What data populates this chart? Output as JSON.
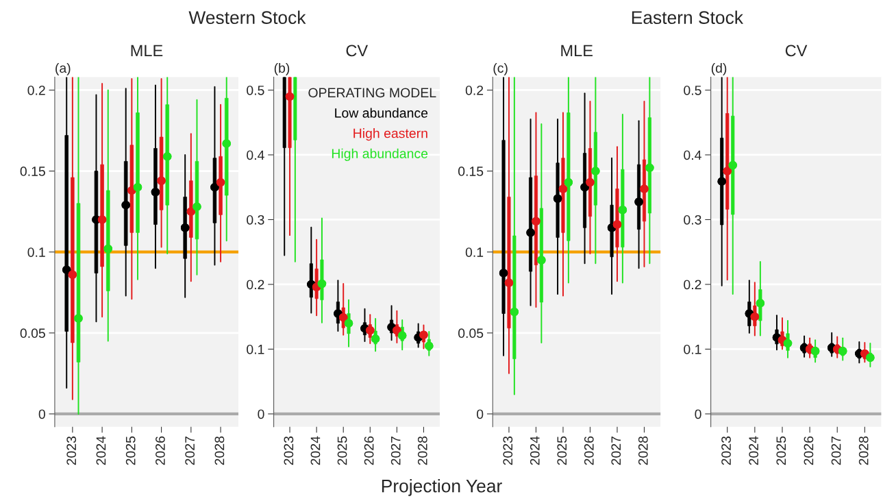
{
  "chart_data": [
    {
      "type": "box",
      "title": "MLE",
      "subtitle": "Western Stock",
      "annotations": [
        "(a)"
      ],
      "categories": [
        "2023",
        "2024",
        "2025",
        "2026",
        "2027",
        "2028"
      ],
      "ylim": [
        -0.008,
        0.208
      ],
      "yticks": [
        0,
        0.05,
        0.1,
        0.15,
        0.2
      ],
      "grid": "y",
      "ref_lines": [
        {
          "axis": "y",
          "value": 0,
          "color": "#aaaaaa"
        },
        {
          "axis": "y",
          "value": 0.1,
          "color": "#f5a000"
        }
      ],
      "series": [
        {
          "color": "#000000",
          "boxes": [
            {
              "low": 0.016,
              "q1": 0.051,
              "median": 0.089,
              "q3": 0.172,
              "high": 0.208
            },
            {
              "low": 0.057,
              "q1": 0.087,
              "median": 0.12,
              "q3": 0.15,
              "high": 0.197
            },
            {
              "low": 0.073,
              "q1": 0.104,
              "median": 0.129,
              "q3": 0.156,
              "high": 0.201
            },
            {
              "low": 0.09,
              "q1": 0.117,
              "median": 0.137,
              "q3": 0.164,
              "high": 0.203
            },
            {
              "low": 0.072,
              "q1": 0.096,
              "median": 0.115,
              "q3": 0.134,
              "high": 0.16
            },
            {
              "low": 0.092,
              "q1": 0.118,
              "median": 0.14,
              "q3": 0.158,
              "high": 0.202
            }
          ]
        },
        {
          "color": "#e31a1c",
          "boxes": [
            {
              "low": 0.009,
              "q1": 0.044,
              "median": 0.086,
              "q3": 0.146,
              "high": 0.208
            },
            {
              "low": 0.06,
              "q1": 0.091,
              "median": 0.12,
              "q3": 0.154,
              "high": 0.204
            },
            {
              "low": 0.071,
              "q1": 0.112,
              "median": 0.138,
              "q3": 0.166,
              "high": 0.207
            },
            {
              "low": 0.103,
              "q1": 0.126,
              "median": 0.144,
              "q3": 0.171,
              "high": 0.207
            },
            {
              "low": 0.082,
              "q1": 0.109,
              "median": 0.125,
              "q3": 0.144,
              "high": 0.173
            },
            {
              "low": 0.094,
              "q1": 0.123,
              "median": 0.143,
              "q3": 0.159,
              "high": 0.191
            }
          ]
        },
        {
          "color": "#22e222",
          "boxes": [
            {
              "low": 0.0,
              "q1": 0.032,
              "median": 0.059,
              "q3": 0.13,
              "high": 0.208
            },
            {
              "low": 0.045,
              "q1": 0.076,
              "median": 0.102,
              "q3": 0.138,
              "high": 0.2
            },
            {
              "low": 0.083,
              "q1": 0.112,
              "median": 0.14,
              "q3": 0.186,
              "high": 0.208
            },
            {
              "low": 0.099,
              "q1": 0.129,
              "median": 0.159,
              "q3": 0.191,
              "high": 0.208
            },
            {
              "low": 0.086,
              "q1": 0.108,
              "median": 0.128,
              "q3": 0.156,
              "high": 0.194
            },
            {
              "low": 0.107,
              "q1": 0.135,
              "median": 0.167,
              "q3": 0.195,
              "high": 0.208
            }
          ]
        }
      ]
    },
    {
      "type": "box",
      "title": "CV",
      "xlabel": "Projection Year",
      "annotations": [
        "(b)"
      ],
      "categories": [
        "2023",
        "2024",
        "2025",
        "2026",
        "2027",
        "2028"
      ],
      "ylim": [
        -0.02,
        0.52
      ],
      "yticks": [
        0,
        0.1,
        0.2,
        0.3,
        0.4,
        0.5
      ],
      "grid": "y",
      "legend_title": "OPERATING MODEL",
      "ref_lines": [
        {
          "axis": "y",
          "value": 0,
          "color": "#aaaaaa"
        }
      ],
      "series": [
        {
          "name": "Low abundance",
          "color": "#000000",
          "boxes": [
            {
              "low": 0.245,
              "q1": 0.411,
              "median": null,
              "q3": 0.52,
              "high": 0.52
            },
            {
              "low": 0.156,
              "q1": 0.18,
              "median": 0.2,
              "q3": 0.232,
              "high": 0.288
            },
            {
              "low": 0.128,
              "q1": 0.14,
              "median": 0.155,
              "q3": 0.173,
              "high": 0.206
            },
            {
              "low": 0.112,
              "q1": 0.122,
              "median": 0.132,
              "q3": 0.141,
              "high": 0.162
            },
            {
              "low": 0.114,
              "q1": 0.125,
              "median": 0.134,
              "q3": 0.145,
              "high": 0.167
            },
            {
              "low": 0.103,
              "q1": 0.109,
              "median": 0.118,
              "q3": 0.127,
              "high": 0.139
            }
          ]
        },
        {
          "name": "High eastern",
          "color": "#e31a1c",
          "boxes": [
            {
              "low": 0.276,
              "q1": 0.411,
              "median": 0.49,
              "q3": 0.52,
              "high": 0.52
            },
            {
              "low": 0.152,
              "q1": 0.178,
              "median": 0.196,
              "q3": 0.224,
              "high": 0.269
            },
            {
              "low": 0.122,
              "q1": 0.133,
              "median": 0.149,
              "q3": 0.164,
              "high": 0.201
            },
            {
              "low": 0.109,
              "q1": 0.118,
              "median": 0.129,
              "q3": 0.138,
              "high": 0.153
            },
            {
              "low": 0.11,
              "q1": 0.12,
              "median": 0.129,
              "q3": 0.138,
              "high": 0.159
            },
            {
              "low": 0.101,
              "q1": 0.111,
              "median": 0.122,
              "q3": 0.125,
              "high": 0.137
            }
          ]
        },
        {
          "name": "High abundance",
          "color": "#22e222",
          "boxes": [
            {
              "low": 0.235,
              "q1": 0.423,
              "median": null,
              "q3": 0.52,
              "high": 0.52
            },
            {
              "low": 0.141,
              "q1": 0.176,
              "median": 0.201,
              "q3": 0.238,
              "high": 0.302
            },
            {
              "low": 0.104,
              "q1": 0.124,
              "median": 0.14,
              "q3": 0.155,
              "high": 0.176
            },
            {
              "low": 0.097,
              "q1": 0.108,
              "median": 0.116,
              "q3": 0.128,
              "high": 0.147
            },
            {
              "low": 0.099,
              "q1": 0.113,
              "median": 0.121,
              "q3": 0.134,
              "high": 0.145
            },
            {
              "low": 0.09,
              "q1": 0.098,
              "median": 0.105,
              "q3": 0.115,
              "high": 0.127
            }
          ]
        }
      ]
    },
    {
      "type": "box",
      "title": "MLE",
      "subtitle": "Eastern Stock",
      "annotations": [
        "(c)"
      ],
      "categories": [
        "2023",
        "2024",
        "2025",
        "2026",
        "2027",
        "2028"
      ],
      "ylim": [
        -0.008,
        0.208
      ],
      "yticks": [
        0,
        0.05,
        0.1,
        0.15,
        0.2
      ],
      "grid": "y",
      "ref_lines": [
        {
          "axis": "y",
          "value": 0,
          "color": "#aaaaaa"
        },
        {
          "axis": "y",
          "value": 0.1,
          "color": "#f5a000"
        }
      ],
      "series": [
        {
          "color": "#000000",
          "boxes": [
            {
              "low": 0.036,
              "q1": 0.062,
              "median": 0.087,
              "q3": 0.169,
              "high": 0.208
            },
            {
              "low": 0.067,
              "q1": 0.088,
              "median": 0.112,
              "q3": 0.146,
              "high": 0.182
            },
            {
              "low": 0.074,
              "q1": 0.109,
              "median": 0.133,
              "q3": 0.155,
              "high": 0.182
            },
            {
              "low": 0.093,
              "q1": 0.115,
              "median": 0.14,
              "q3": 0.161,
              "high": 0.198
            },
            {
              "low": 0.074,
              "q1": 0.097,
              "median": 0.115,
              "q3": 0.129,
              "high": 0.158
            },
            {
              "low": 0.09,
              "q1": 0.114,
              "median": 0.131,
              "q3": 0.154,
              "high": 0.181
            }
          ]
        },
        {
          "color": "#e31a1c",
          "boxes": [
            {
              "low": 0.025,
              "q1": 0.053,
              "median": 0.081,
              "q3": 0.134,
              "high": 0.208
            },
            {
              "low": 0.066,
              "q1": 0.092,
              "median": 0.119,
              "q3": 0.147,
              "high": 0.186
            },
            {
              "low": 0.073,
              "q1": 0.112,
              "median": 0.139,
              "q3": 0.158,
              "high": 0.186
            },
            {
              "low": 0.099,
              "q1": 0.122,
              "median": 0.143,
              "q3": 0.164,
              "high": 0.193
            },
            {
              "low": 0.082,
              "q1": 0.103,
              "median": 0.117,
              "q3": 0.139,
              "high": 0.165
            },
            {
              "low": 0.091,
              "q1": 0.119,
              "median": 0.139,
              "q3": 0.157,
              "high": 0.193
            }
          ]
        },
        {
          "color": "#22e222",
          "boxes": [
            {
              "low": 0.012,
              "q1": 0.034,
              "median": 0.063,
              "q3": 0.11,
              "high": 0.208
            },
            {
              "low": 0.044,
              "q1": 0.069,
              "median": 0.095,
              "q3": 0.127,
              "high": 0.179
            },
            {
              "low": 0.081,
              "q1": 0.107,
              "median": 0.143,
              "q3": 0.186,
              "high": 0.208
            },
            {
              "low": 0.093,
              "q1": 0.129,
              "median": 0.15,
              "q3": 0.174,
              "high": 0.208
            },
            {
              "low": 0.081,
              "q1": 0.103,
              "median": 0.126,
              "q3": 0.151,
              "high": 0.185
            },
            {
              "low": 0.093,
              "q1": 0.124,
              "median": 0.152,
              "q3": 0.183,
              "high": 0.208
            }
          ]
        }
      ]
    },
    {
      "type": "box",
      "title": "CV",
      "annotations": [
        "(d)"
      ],
      "categories": [
        "2023",
        "2024",
        "2025",
        "2026",
        "2027",
        "2028"
      ],
      "ylim": [
        -0.02,
        0.52
      ],
      "yticks": [
        0,
        0.1,
        0.2,
        0.3,
        0.4,
        0.5
      ],
      "grid": "y",
      "ref_lines": [
        {
          "axis": "y",
          "value": 0,
          "color": "#aaaaaa"
        }
      ],
      "series": [
        {
          "color": "#000000",
          "boxes": [
            {
              "low": 0.198,
              "q1": 0.292,
              "median": 0.359,
              "q3": 0.426,
              "high": 0.52
            },
            {
              "low": 0.125,
              "q1": 0.136,
              "median": 0.155,
              "q3": 0.173,
              "high": 0.206
            },
            {
              "low": 0.099,
              "q1": 0.108,
              "median": 0.118,
              "q3": 0.13,
              "high": 0.152
            },
            {
              "low": 0.088,
              "q1": 0.094,
              "median": 0.102,
              "q3": 0.109,
              "high": 0.12
            },
            {
              "low": 0.089,
              "q1": 0.094,
              "median": 0.102,
              "q3": 0.109,
              "high": 0.125
            },
            {
              "low": 0.079,
              "q1": 0.086,
              "median": 0.093,
              "q3": 0.1,
              "high": 0.111
            }
          ]
        },
        {
          "color": "#e31a1c",
          "boxes": [
            {
              "low": 0.207,
              "q1": 0.316,
              "median": 0.375,
              "q3": 0.464,
              "high": 0.52
            },
            {
              "low": 0.121,
              "q1": 0.136,
              "median": 0.15,
              "q3": 0.167,
              "high": 0.203
            },
            {
              "low": 0.1,
              "q1": 0.105,
              "median": 0.114,
              "q3": 0.127,
              "high": 0.148
            },
            {
              "low": 0.087,
              "q1": 0.093,
              "median": 0.1,
              "q3": 0.108,
              "high": 0.117
            },
            {
              "low": 0.087,
              "q1": 0.093,
              "median": 0.1,
              "q3": 0.107,
              "high": 0.119
            },
            {
              "low": 0.08,
              "q1": 0.085,
              "median": 0.093,
              "q3": 0.098,
              "high": 0.11
            }
          ]
        },
        {
          "color": "#22e222",
          "boxes": [
            {
              "low": 0.185,
              "q1": 0.308,
              "median": 0.384,
              "q3": 0.46,
              "high": 0.52
            },
            {
              "low": 0.121,
              "q1": 0.144,
              "median": 0.171,
              "q3": 0.192,
              "high": 0.235
            },
            {
              "low": 0.087,
              "q1": 0.098,
              "median": 0.109,
              "q3": 0.124,
              "high": 0.144
            },
            {
              "low": 0.08,
              "q1": 0.087,
              "median": 0.097,
              "q3": 0.103,
              "high": 0.114
            },
            {
              "low": 0.083,
              "q1": 0.09,
              "median": 0.097,
              "q3": 0.103,
              "high": 0.117
            },
            {
              "low": 0.073,
              "q1": 0.082,
              "median": 0.087,
              "q3": 0.094,
              "high": 0.109
            }
          ]
        }
      ]
    }
  ]
}
